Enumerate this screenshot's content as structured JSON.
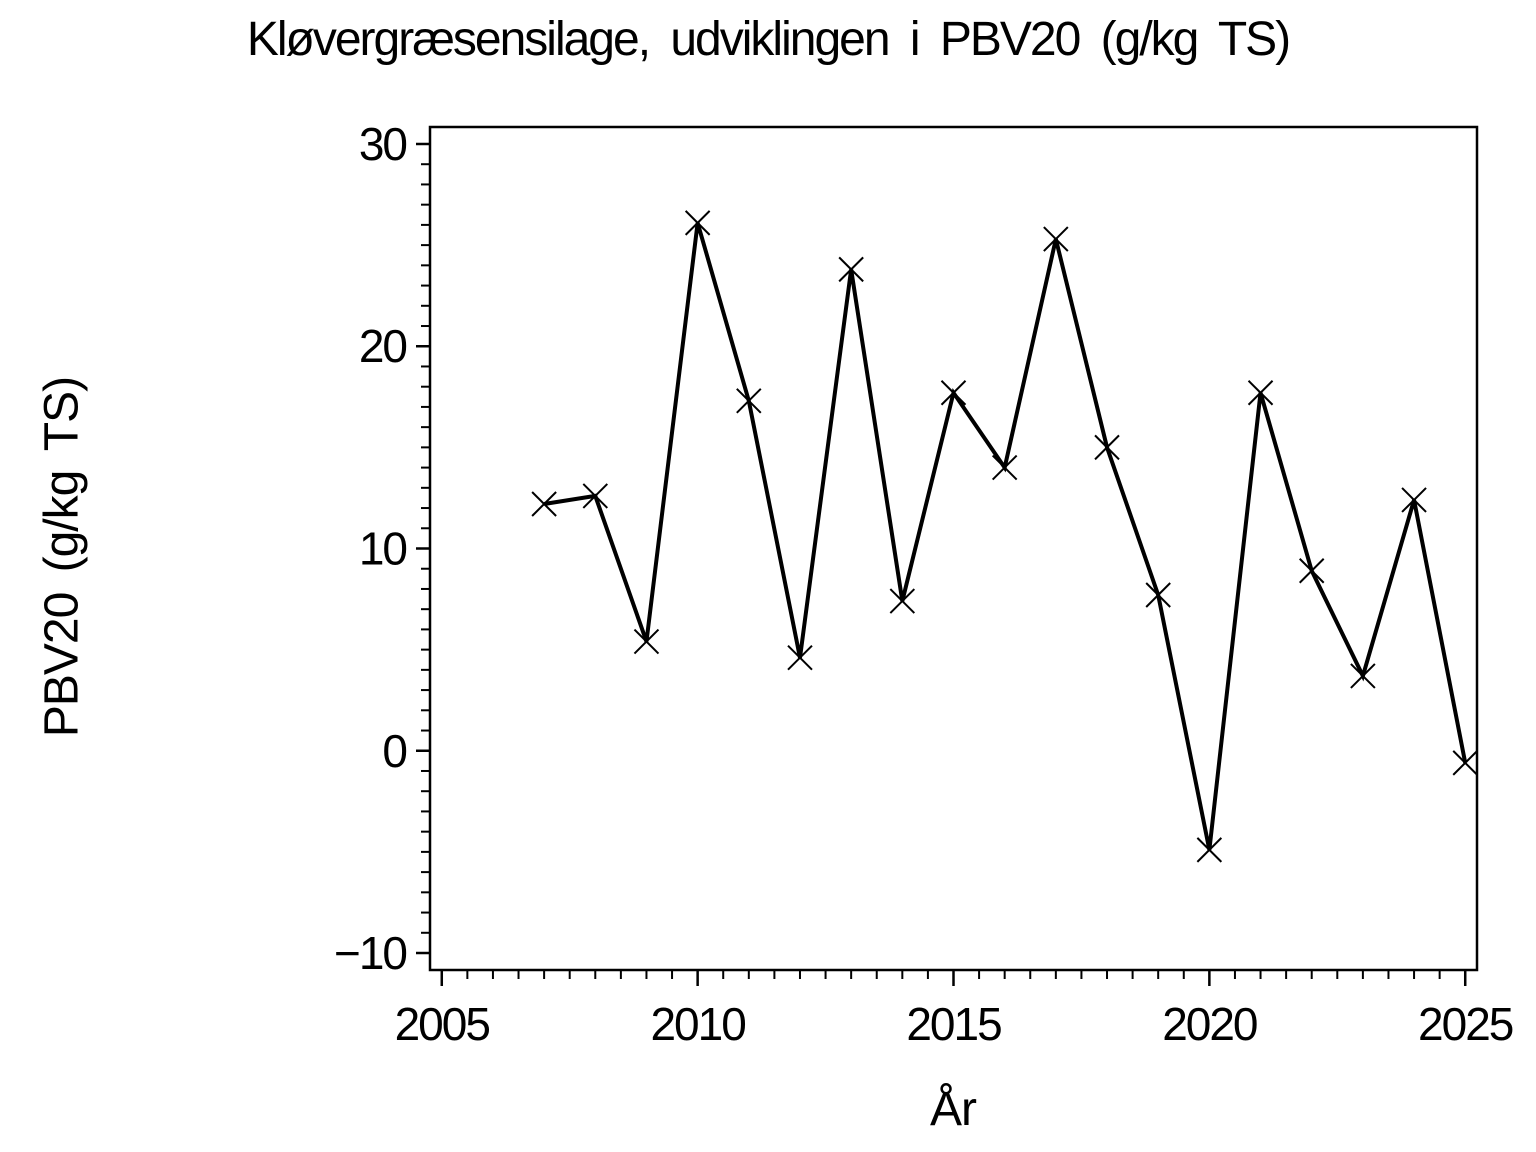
{
  "chart_data": {
    "type": "line",
    "title": "Kløvergræsensilage,  udviklingen  i  PBV20  (g/kg  TS)",
    "xlabel": "År",
    "ylabel": "PBV20  (g/kg  TS)",
    "x": [
      2007,
      2008,
      2009,
      2010,
      2011,
      2012,
      2013,
      2014,
      2015,
      2016,
      2017,
      2018,
      2019,
      2020,
      2021,
      2022,
      2023,
      2024,
      2025
    ],
    "values": [
      12.2,
      12.6,
      5.4,
      26.1,
      17.3,
      4.6,
      23.8,
      7.4,
      17.7,
      14.0,
      25.3,
      15.0,
      7.7,
      -4.9,
      17.7,
      8.9,
      3.7,
      12.4,
      -0.6
    ],
    "xlim": [
      2004.77,
      2025.23
    ],
    "ylim": [
      -10.84,
      30.84
    ],
    "x_major_ticks": [
      2005,
      2010,
      2015,
      2020,
      2025
    ],
    "x_tick_labels": [
      "2005",
      "2010",
      "2015",
      "2020",
      "2025"
    ],
    "x_minor_step": 0.5,
    "y_major_ticks": [
      30,
      20,
      10,
      0,
      -10
    ],
    "y_tick_labels": [
      "30",
      "20",
      "10",
      "0",
      "−10"
    ],
    "y_minor_step": 1,
    "marker": "x-cross",
    "line_color": "#000000",
    "background_color": "#ffffff",
    "grid": false,
    "legend": "none"
  }
}
